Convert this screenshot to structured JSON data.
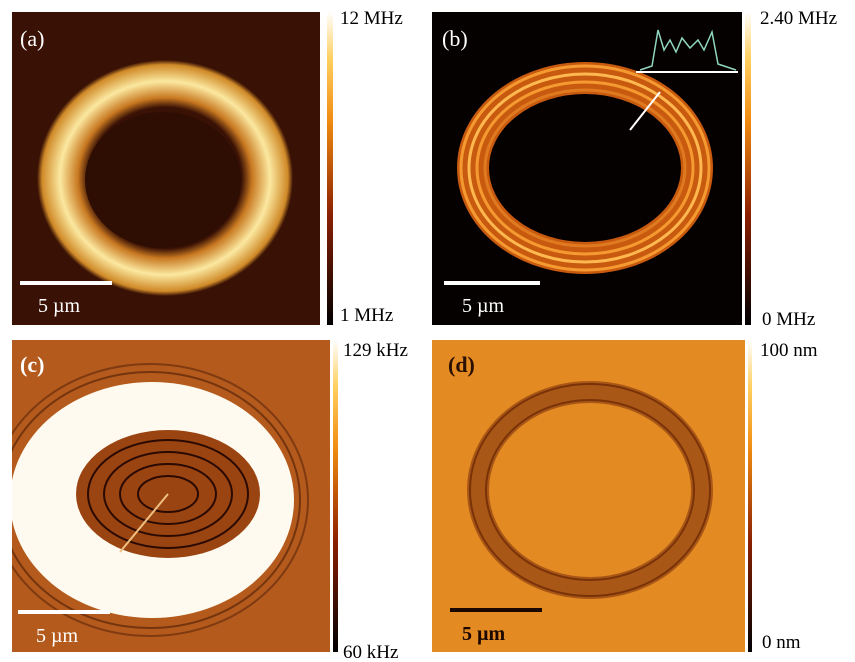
{
  "panels": [
    {
      "label": "(a)",
      "scale_bar": "5 µm",
      "colorbar": {
        "max": "12 MHz",
        "min": "1 MHz"
      }
    },
    {
      "label": "(b)",
      "scale_bar": "5 µm",
      "colorbar": {
        "max": "2.40 MHz",
        "min": "0 MHz"
      }
    },
    {
      "label": "(c)",
      "scale_bar": "5 µm",
      "colorbar": {
        "max": "129 kHz",
        "min": "60 kHz"
      }
    },
    {
      "label": "(d)",
      "scale_bar": "5 µm",
      "colorbar": {
        "max": "100 nm",
        "min": "0 nm"
      }
    }
  ]
}
